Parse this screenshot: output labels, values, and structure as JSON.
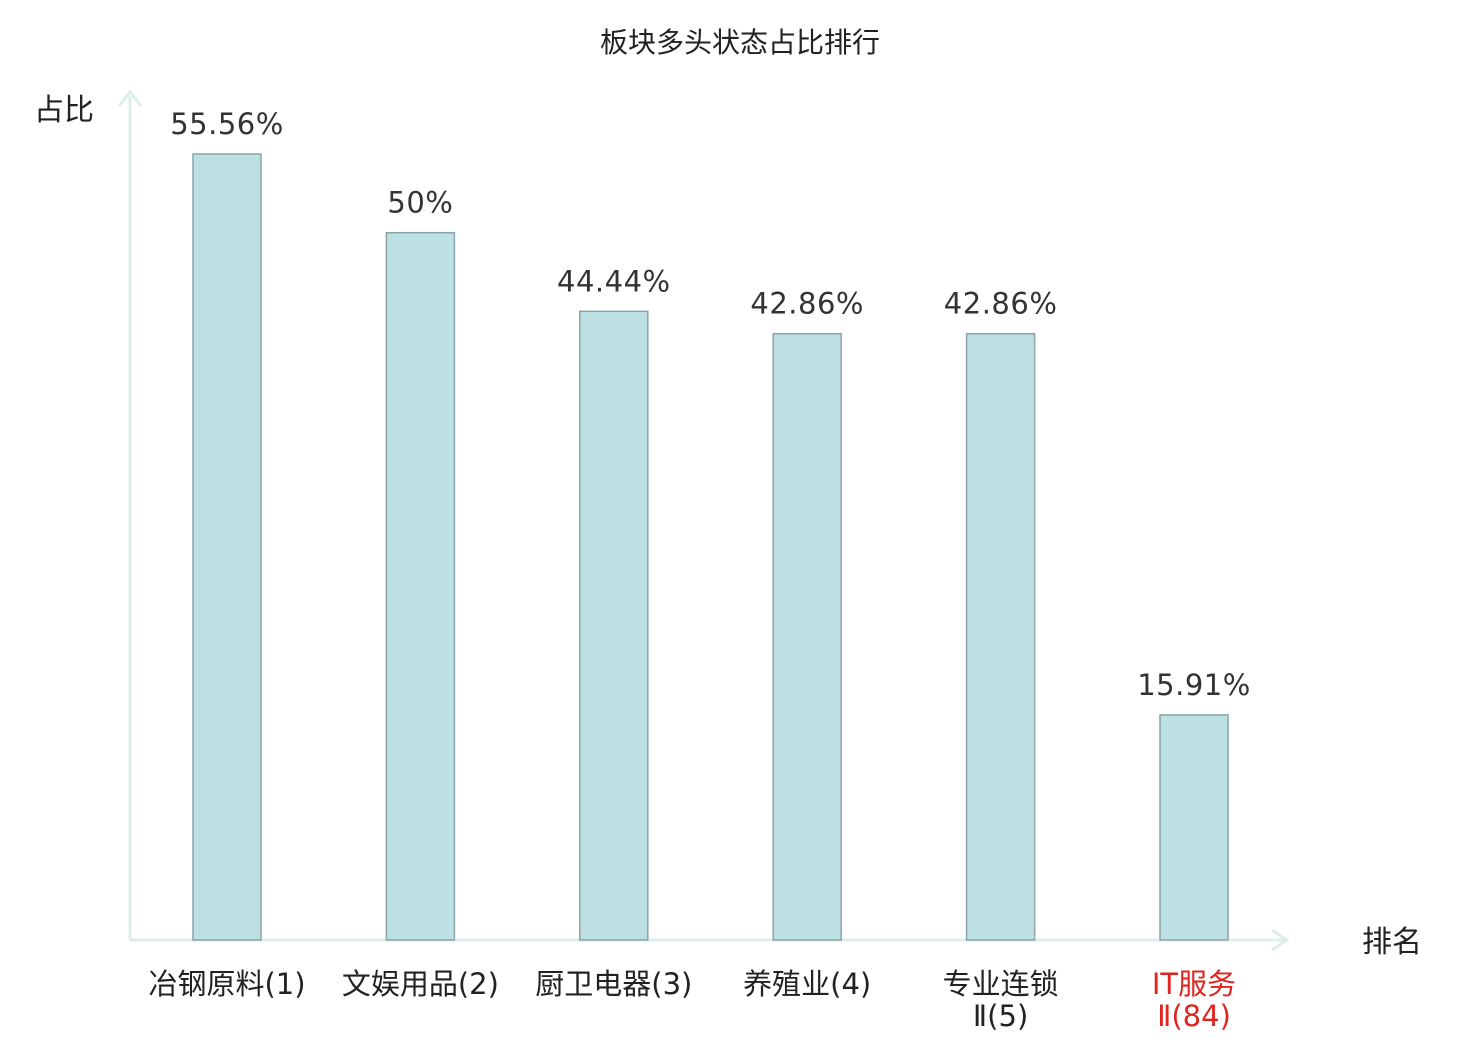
{
  "chart_data": {
    "type": "bar",
    "title": "板块多头状态占比排行",
    "ylabel": "占比",
    "xlabel": "排名",
    "ylim": [
      0,
      60
    ],
    "grid": false,
    "categories": [
      [
        "冶钢原料(1)"
      ],
      [
        "文娱用品(2)"
      ],
      [
        "厨卫电器(3)"
      ],
      [
        "养殖业(4)"
      ],
      [
        "专业连锁",
        "Ⅱ(5)"
      ],
      [
        "IT服务",
        "Ⅱ(84)"
      ]
    ],
    "values": [
      55.56,
      50,
      44.44,
      42.86,
      42.86,
      15.91
    ],
    "data_labels": [
      "55.56%",
      "50%",
      "44.44%",
      "42.86%",
      "42.86%",
      "15.91%"
    ],
    "highlight_index": 5
  },
  "colors": {
    "bar_fill": "#bde0e3",
    "bar_stroke": "#8aa4a8",
    "axis": "#dcefed",
    "label_text": "#222222",
    "highlight_text": "#e0241f"
  }
}
